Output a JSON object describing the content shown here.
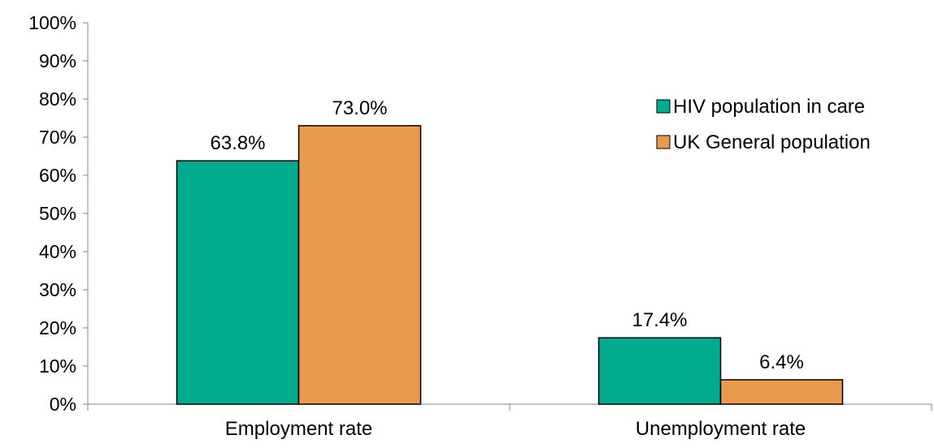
{
  "chart_data": {
    "type": "bar",
    "categories": [
      "Employment rate",
      "Unemployment rate"
    ],
    "series": [
      {
        "name": "HIV population in care",
        "values": [
          63.8,
          17.4
        ],
        "labels": [
          "63.8%",
          "17.4%"
        ],
        "color": "#00ab8e"
      },
      {
        "name": "UK General population",
        "values": [
          73.0,
          6.4
        ],
        "labels": [
          "73.0%",
          "6.4%"
        ],
        "color": "#e89b4c"
      }
    ],
    "ylim": [
      0,
      100
    ],
    "yticks": [
      0,
      10,
      20,
      30,
      40,
      50,
      60,
      70,
      80,
      90,
      100
    ],
    "ytick_labels": [
      "0%",
      "10%",
      "20%",
      "30%",
      "40%",
      "50%",
      "60%",
      "70%",
      "80%",
      "90%",
      "100%"
    ],
    "grid": false,
    "legend_position": "top-right",
    "bar_outline_color": "#000000",
    "axis_color": "#868686"
  }
}
